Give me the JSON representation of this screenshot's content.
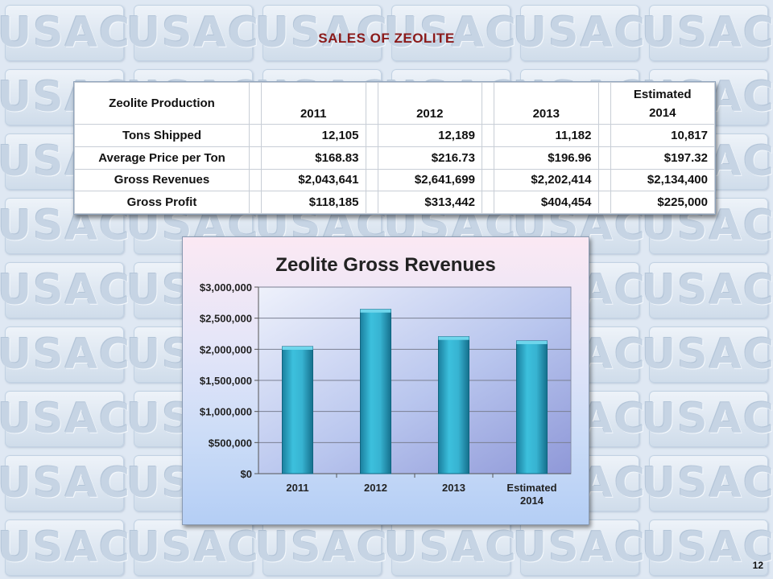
{
  "slide": {
    "title": "SALES OF ZEOLITE",
    "page_number": "12",
    "background_logo": "USAC"
  },
  "table": {
    "header_label": "Zeolite Production",
    "columns": [
      {
        "line1": "",
        "line2": "2011"
      },
      {
        "line1": "",
        "line2": "2012"
      },
      {
        "line1": "",
        "line2": "2013"
      },
      {
        "line1": "Estimated",
        "line2": "2014"
      }
    ],
    "rows": [
      {
        "label": "Tons Shipped",
        "values": [
          "12,105",
          "12,189",
          "11,182",
          "10,817"
        ]
      },
      {
        "label": "Average Price per Ton",
        "values": [
          "$168.83",
          "$216.73",
          "$196.96",
          "$197.32"
        ]
      },
      {
        "label": "Gross Revenues",
        "values": [
          "$2,043,641",
          "$2,641,699",
          "$2,202,414",
          "$2,134,400"
        ]
      },
      {
        "label": "Gross Profit",
        "values": [
          "$118,185",
          "$313,442",
          "$404,454",
          "$225,000"
        ]
      }
    ]
  },
  "chart_data": {
    "type": "bar",
    "title": "Zeolite Gross Revenues",
    "categories": [
      [
        "2011"
      ],
      [
        "2012"
      ],
      [
        "2013"
      ],
      [
        "Estimated",
        "2014"
      ]
    ],
    "values": [
      2043641,
      2641699,
      2202414,
      2134400
    ],
    "ylim": [
      0,
      3000000
    ],
    "yticks": [
      0,
      500000,
      1000000,
      1500000,
      2000000,
      2500000,
      3000000
    ],
    "ytick_labels": [
      "$0",
      "$500,000",
      "$1,000,000",
      "$1,500,000",
      "$2,000,000",
      "$2,500,000",
      "$3,000,000"
    ],
    "grid": true,
    "bar_color": "#2fa8c8",
    "xlabel": "",
    "ylabel": ""
  }
}
